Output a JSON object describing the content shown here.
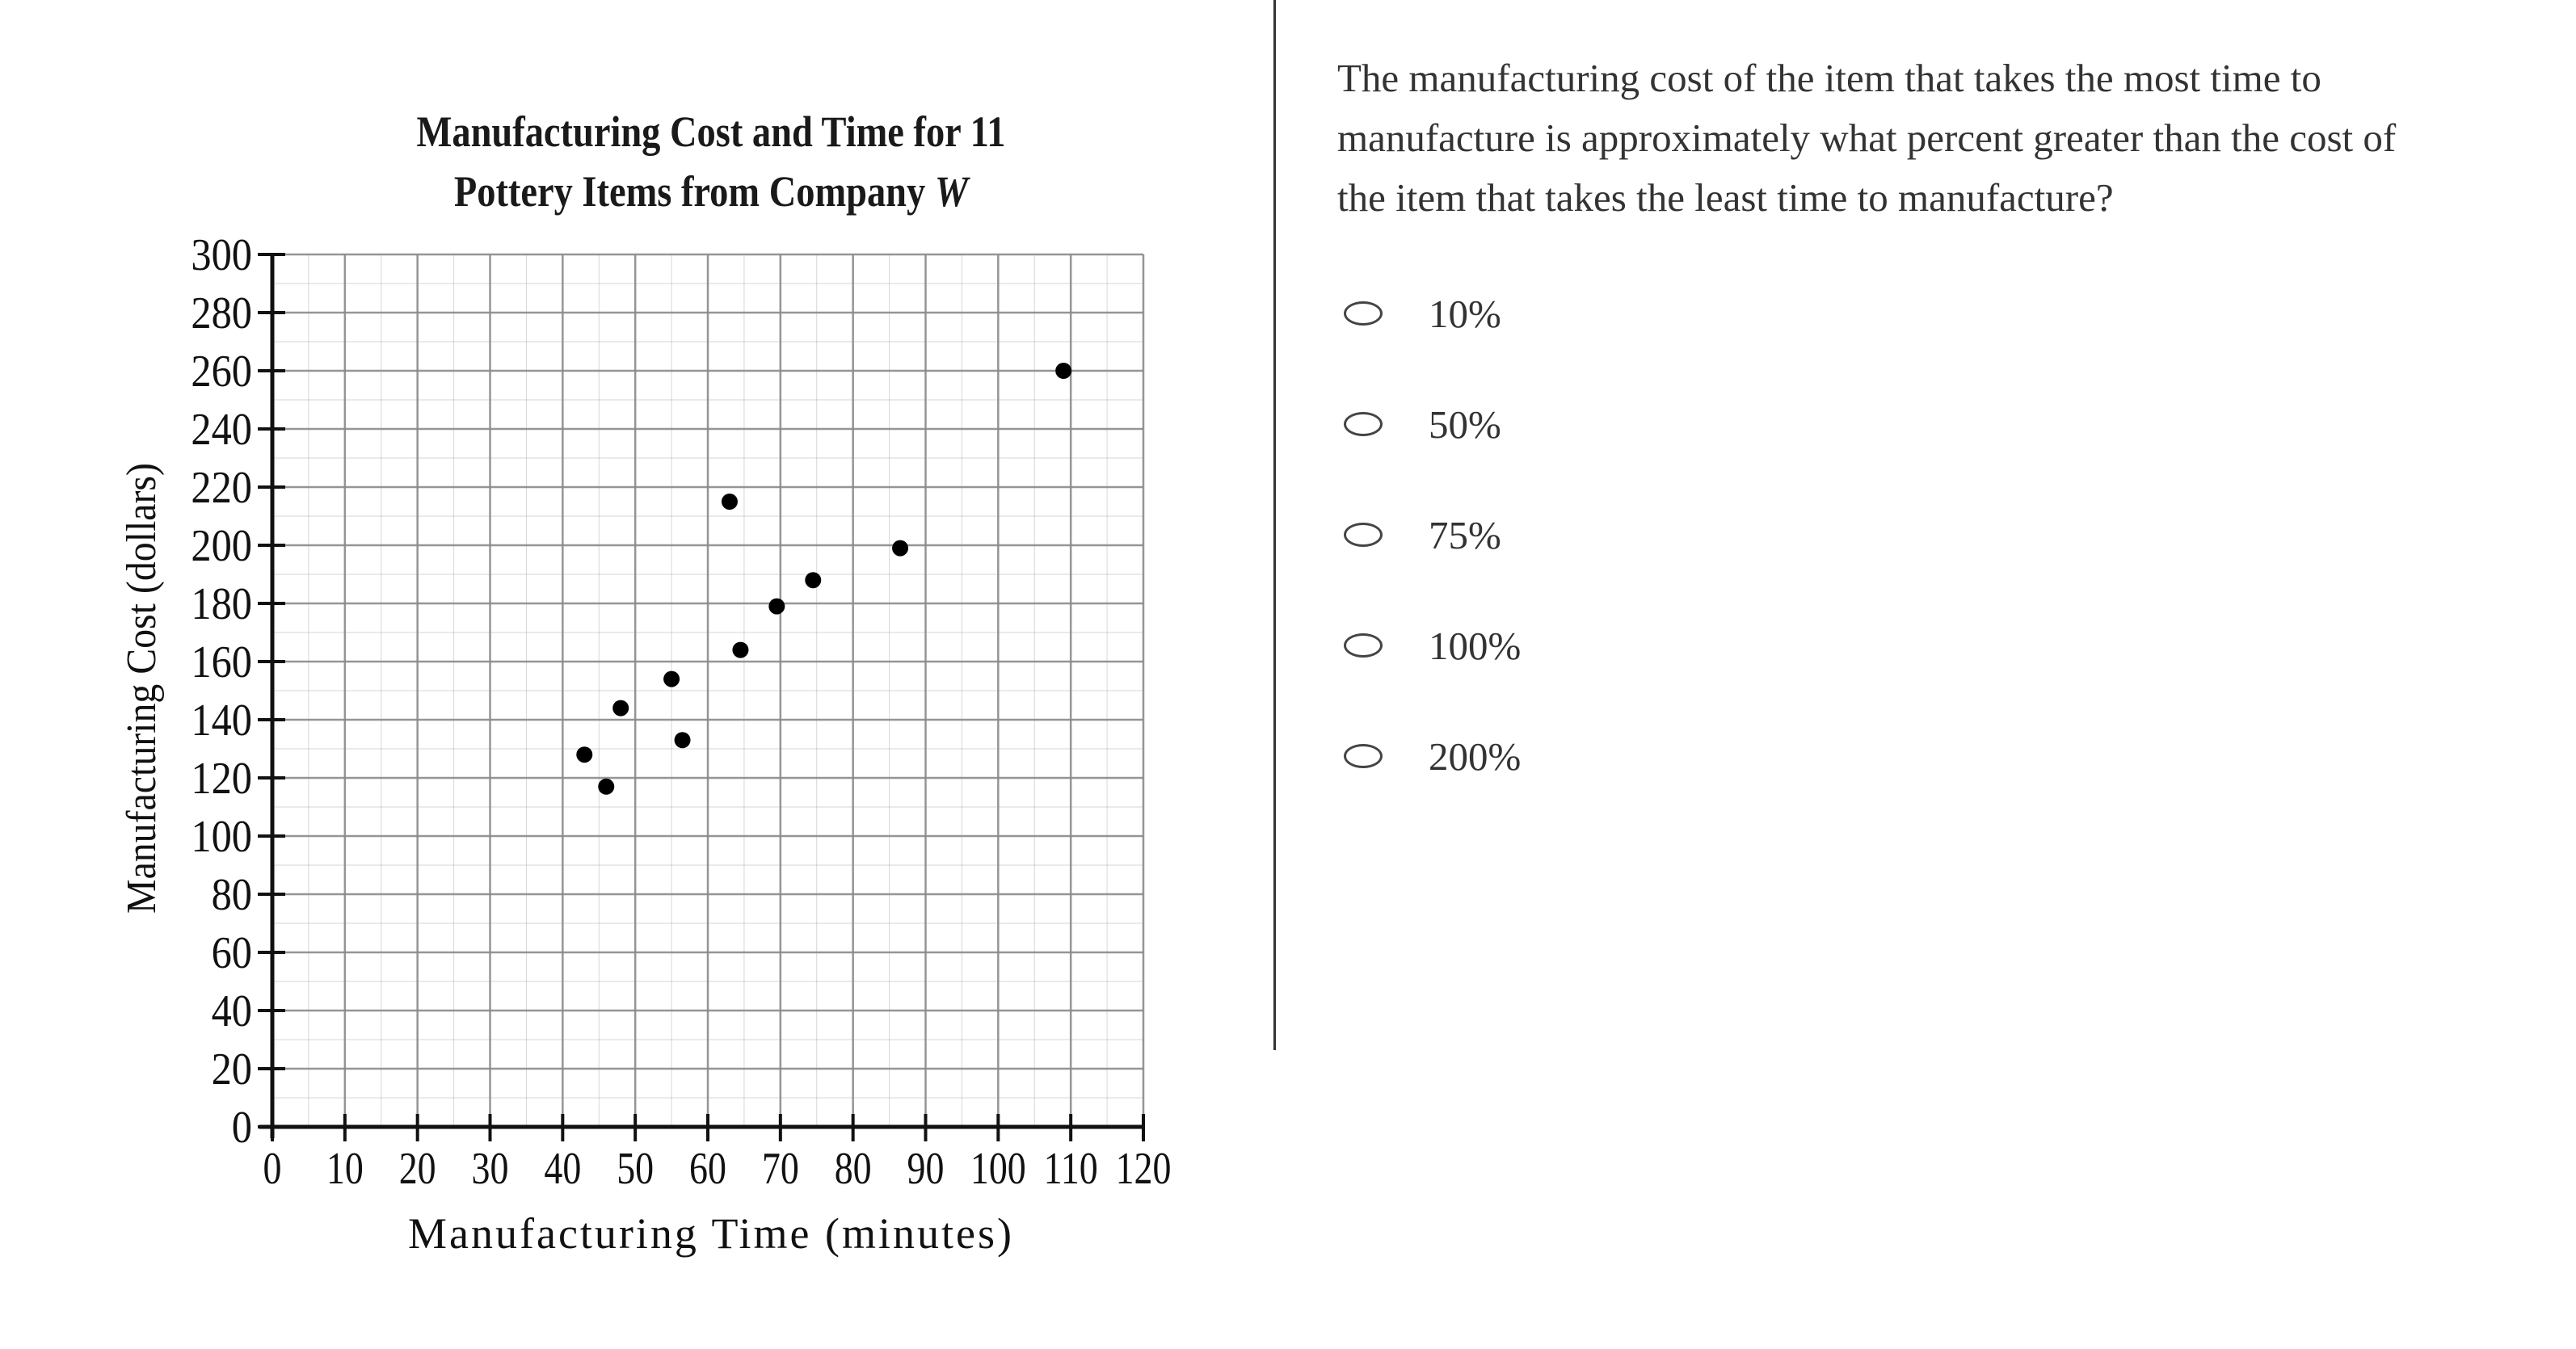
{
  "chart_data": {
    "type": "scatter",
    "title": "Manufacturing Cost and Time for 11 Pottery Items from Company W",
    "title_lines": [
      "Manufacturing Cost and Time for 11",
      "Pottery Items from Company "
    ],
    "title_italic_suffix": "W",
    "xlabel": "Manufacturing Time (minutes)",
    "ylabel": "Manufacturing Cost (dollars)",
    "xlim": [
      0,
      120
    ],
    "ylim": [
      0,
      300
    ],
    "x_ticks": [
      0,
      10,
      20,
      30,
      40,
      50,
      60,
      70,
      80,
      90,
      100,
      110,
      120
    ],
    "y_ticks": [
      0,
      20,
      40,
      60,
      80,
      100,
      120,
      140,
      160,
      180,
      200,
      220,
      240,
      260,
      280,
      300
    ],
    "grid": true,
    "legend": null,
    "series": [
      {
        "name": "Pottery items",
        "points": [
          {
            "x": 43,
            "y": 128
          },
          {
            "x": 46,
            "y": 117
          },
          {
            "x": 48,
            "y": 144
          },
          {
            "x": 55,
            "y": 154
          },
          {
            "x": 56.5,
            "y": 133
          },
          {
            "x": 63,
            "y": 215
          },
          {
            "x": 64.5,
            "y": 164
          },
          {
            "x": 69.5,
            "y": 179
          },
          {
            "x": 74.5,
            "y": 188
          },
          {
            "x": 86.5,
            "y": 199
          },
          {
            "x": 109,
            "y": 260
          }
        ]
      }
    ]
  },
  "question": {
    "text": "The manufacturing cost of the item that takes the most time to manufacture is approximately what percent greater than the cost of the item that takes the least time to manufacture?",
    "lines": [
      "The manufacturing cost of the item that takes the most time to",
      "manufacture is approximately what percent greater than the cost of",
      "the item that takes the least time to manufacture?"
    ]
  },
  "options": [
    {
      "label": "10%",
      "selected": false
    },
    {
      "label": "50%",
      "selected": false
    },
    {
      "label": "75%",
      "selected": false
    },
    {
      "label": "100%",
      "selected": false
    },
    {
      "label": "200%",
      "selected": false
    }
  ],
  "colors": {
    "grid": "#8a8a8a",
    "axis": "#111111",
    "point": "#000000",
    "text": "#333333",
    "divider": "#333333"
  }
}
